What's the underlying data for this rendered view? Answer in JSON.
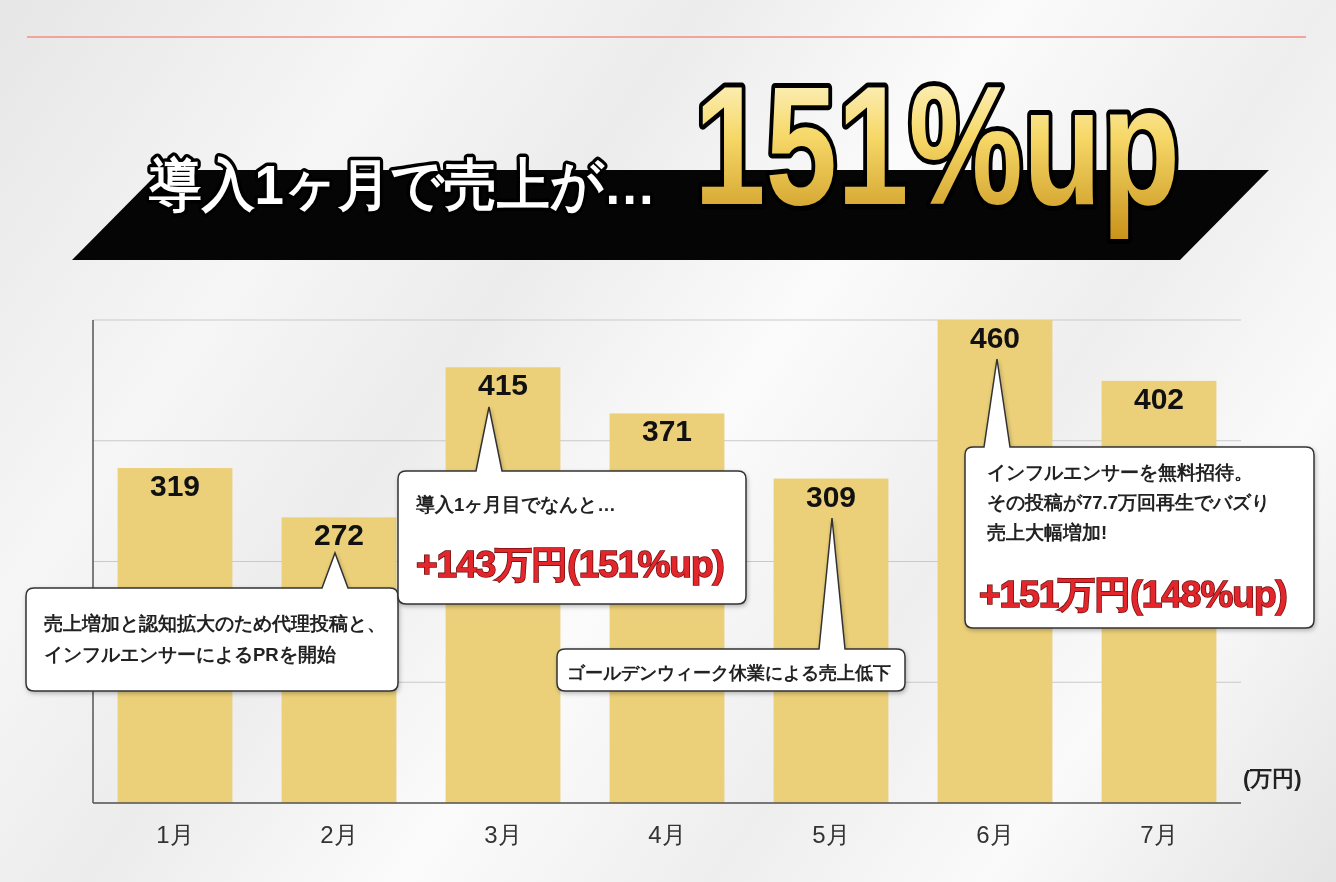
{
  "chart_data": {
    "type": "bar",
    "title": "導入1ヶ月で売上が…",
    "subtitle": "151%up",
    "ylabel": "(万円)",
    "categories": [
      "1月",
      "2月",
      "3月",
      "4月",
      "5月",
      "6月",
      "7月"
    ],
    "values": [
      319,
      272,
      415,
      371,
      309,
      460,
      402
    ],
    "color": "#ecd079",
    "ylim": [
      0,
      460
    ],
    "yticks": [
      {
        "value": 0,
        "label": null
      },
      {
        "value": 115,
        "label": null
      },
      {
        "value": 230,
        "label": null
      },
      {
        "value": 345,
        "label": null
      },
      {
        "value": 460,
        "label": null
      }
    ],
    "grid": "y",
    "tick_labels": "x",
    "data_labels": true,
    "annotations": [
      "売上増加と認知拡大のため代理投稿と、インフルエンサーによるPRを開始",
      "導入1ヶ月目でなんと…",
      "+143万円(151%up)",
      "ゴールデンウィーク休業による売上低下",
      "インフルエンサーを無料招待。その投稿が77.7万回再生でバズり売上大幅増加!",
      "+151万円(148%up)"
    ]
  }
}
